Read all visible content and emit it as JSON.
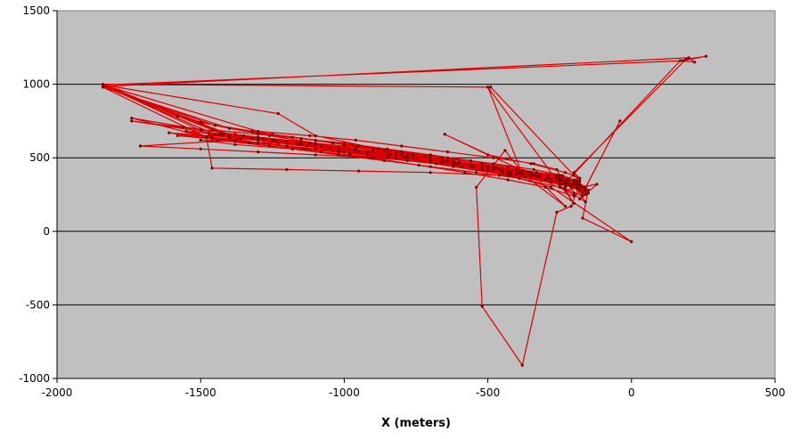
{
  "chart_data": {
    "type": "line",
    "title": "",
    "xlabel": "X (meters)",
    "ylabel": "",
    "xlim": [
      -2000,
      500
    ],
    "ylim": [
      -1000,
      1500
    ],
    "x_ticks": [
      -2000,
      -1500,
      -1000,
      -500,
      0,
      500
    ],
    "y_ticks": [
      -1000,
      -500,
      0,
      500,
      1000,
      1500
    ],
    "x_tick_labels": [
      "-2000",
      "-1500",
      "-1000",
      "-500",
      "0",
      "500"
    ],
    "y_tick_labels": [
      "-1000",
      "-500",
      "0",
      "500",
      "1000",
      "1500"
    ],
    "grid": "horizontal",
    "legend": "none",
    "colors": {
      "plot_bg": "#c0c0c0",
      "series_line": "#dd0000",
      "marker": "#800000",
      "gridline": "#000000"
    },
    "series": [
      {
        "x": [
          -1840,
          -1230,
          -1100,
          -880,
          -700,
          -620,
          -550,
          -450,
          -400,
          -330,
          -280,
          -250,
          -230,
          -190,
          -160,
          -210,
          -300,
          -450,
          -620,
          -790,
          -960,
          -1150,
          -1320,
          -1470,
          -1840,
          -1580,
          -1400,
          -1260,
          -1100,
          -960,
          -820,
          -700,
          -560,
          -430,
          -330,
          -250,
          -200,
          -170,
          -220,
          -330,
          -480,
          -650,
          -800,
          -980,
          -1150,
          -1300,
          -1450,
          -1840,
          -1500,
          -1320,
          -1180,
          -1040,
          -900,
          -760,
          -620,
          -480,
          -360,
          -260,
          -190,
          -160,
          -240,
          -380,
          -560,
          -760,
          -960,
          -1160,
          -1360,
          -1840,
          -1450,
          -1300,
          -1150,
          -1000,
          -860,
          -720,
          -600,
          -470,
          -350,
          -240,
          -180,
          -150,
          -210,
          -320,
          -460,
          -610,
          -780,
          -950,
          -1130,
          -1300,
          -1480,
          -1840,
          -1400,
          -1250,
          -1100,
          -950,
          -800,
          -660,
          -520,
          -400,
          -290,
          -200,
          -160,
          -200,
          -300,
          -430,
          -580,
          -740,
          -910,
          -1080,
          -1260,
          -1440,
          -1740,
          -1560,
          -1380,
          -1200,
          -1020,
          -840,
          -660,
          -480,
          -320,
          -220,
          -180,
          -230,
          -340,
          -480,
          -640,
          -800,
          -960,
          -1120,
          -1280,
          -1430,
          -1740,
          -1500,
          -1300,
          -1100,
          -900,
          -700,
          -500,
          -360,
          -250,
          -190,
          -160,
          -240,
          -370,
          -520,
          -680,
          -850,
          -1020,
          -1200,
          -1380,
          -1710,
          -1500,
          -1300,
          -1100,
          -900,
          -700,
          -520,
          -380,
          -260,
          -200,
          -170,
          -230,
          -350,
          -500,
          -660,
          -820,
          -980,
          -1140,
          -1300,
          -1460,
          -1610,
          -1400,
          -1200,
          -1000,
          -820,
          -640,
          -480,
          -340,
          -240,
          -190,
          -170,
          -250,
          -390,
          -540,
          -700,
          -860,
          -1020,
          -1180,
          -1330,
          -1480,
          -1460,
          -1200,
          -950,
          -700,
          -460,
          -260,
          -190,
          -160,
          -220,
          -320,
          -450,
          -600,
          -760,
          -920,
          -1080,
          -1240,
          -1400,
          -1840,
          -490,
          -200,
          -180,
          -230,
          -260,
          -340,
          -480,
          -640,
          -800,
          -960,
          -1120,
          -1300,
          -1840,
          180,
          260,
          190,
          -200,
          -180,
          -250,
          -420,
          -620,
          -850,
          -1050,
          -1250,
          -1420,
          -1840,
          200,
          220,
          170,
          -220,
          -210,
          -200,
          -280,
          -430,
          -600,
          -780,
          -960,
          -1150,
          -1350,
          -1580,
          -1300,
          -1000,
          -700,
          -400,
          -250,
          -180,
          -210,
          -260,
          -380,
          -520,
          -540,
          -440,
          -380,
          -250,
          -190,
          -150,
          -170,
          0,
          -280,
          -430,
          -620,
          -820,
          -1020,
          -1230,
          -1500,
          -1380,
          -1180,
          -980,
          -780,
          -590,
          -420,
          -290,
          -200,
          -170,
          -40,
          -180,
          -120,
          -230,
          -200,
          -500,
          -380,
          -230,
          -350,
          -480,
          -640,
          -800,
          -960,
          -1120,
          -1280,
          -1440,
          -1550,
          -1460,
          -1280,
          -1100,
          -920,
          -740,
          -560,
          -390,
          -260,
          -200,
          -160,
          -200,
          -650,
          -500,
          -350,
          -230,
          -180,
          -200,
          -260,
          -330,
          -430,
          -560,
          -700,
          -850,
          -1000,
          -1150,
          -1300,
          -1460
        ],
        "y": [
          995,
          800,
          650,
          560,
          500,
          470,
          440,
          410,
          390,
          370,
          350,
          330,
          315,
          300,
          280,
          310,
          350,
          400,
          450,
          500,
          550,
          590,
          630,
          660,
          995,
          780,
          700,
          650,
          600,
          560,
          520,
          490,
          450,
          410,
          380,
          350,
          330,
          300,
          360,
          400,
          440,
          480,
          520,
          560,
          600,
          630,
          660,
          990,
          740,
          680,
          640,
          600,
          560,
          520,
          480,
          440,
          400,
          370,
          340,
          300,
          360,
          410,
          450,
          500,
          550,
          590,
          630,
          985,
          720,
          670,
          630,
          590,
          550,
          510,
          470,
          430,
          390,
          350,
          310,
          260,
          320,
          370,
          420,
          460,
          500,
          540,
          580,
          620,
          640,
          980,
          700,
          660,
          620,
          580,
          540,
          500,
          460,
          420,
          380,
          340,
          290,
          240,
          300,
          350,
          400,
          450,
          500,
          540,
          580,
          620,
          770,
          710,
          660,
          610,
          560,
          520,
          470,
          420,
          380,
          340,
          290,
          330,
          380,
          430,
          480,
          520,
          560,
          600,
          630,
          660,
          750,
          690,
          640,
          590,
          540,
          490,
          440,
          400,
          360,
          320,
          270,
          320,
          370,
          420,
          460,
          500,
          540,
          580,
          620,
          580,
          560,
          540,
          520,
          500,
          470,
          440,
          410,
          380,
          350,
          300,
          340,
          380,
          420,
          460,
          500,
          530,
          560,
          600,
          630,
          670,
          640,
          610,
          580,
          540,
          500,
          460,
          420,
          380,
          340,
          240,
          300,
          360,
          400,
          440,
          480,
          520,
          560,
          600,
          640,
          430,
          420,
          410,
          400,
          380,
          350,
          300,
          250,
          320,
          380,
          420,
          460,
          500,
          540,
          580,
          620,
          650,
          1000,
          980,
          380,
          340,
          300,
          420,
          460,
          500,
          540,
          580,
          620,
          650,
          680,
          995,
          1160,
          1190,
          1170,
          400,
          360,
          320,
          380,
          450,
          520,
          570,
          620,
          660,
          985,
          1180,
          1150,
          1160,
          350,
          300,
          260,
          340,
          400,
          460,
          520,
          570,
          610,
          650,
          650,
          600,
          540,
          480,
          420,
          380,
          320,
          170,
          130,
          -910,
          -510,
          300,
          550,
          400,
          340,
          290,
          280,
          90,
          -70,
          300,
          380,
          440,
          500,
          550,
          600,
          620,
          590,
          560,
          520,
          480,
          440,
          400,
          360,
          320,
          260,
          750,
          220,
          320,
          280,
          190,
          980,
          390,
          170,
          400,
          440,
          480,
          520,
          560,
          600,
          630,
          660,
          680,
          640,
          600,
          560,
          520,
          480,
          440,
          400,
          360,
          320,
          200,
          250,
          660,
          520,
          460,
          400,
          360,
          320,
          360,
          400,
          440,
          480,
          520,
          560,
          600,
          630,
          660,
          690
        ]
      }
    ]
  }
}
